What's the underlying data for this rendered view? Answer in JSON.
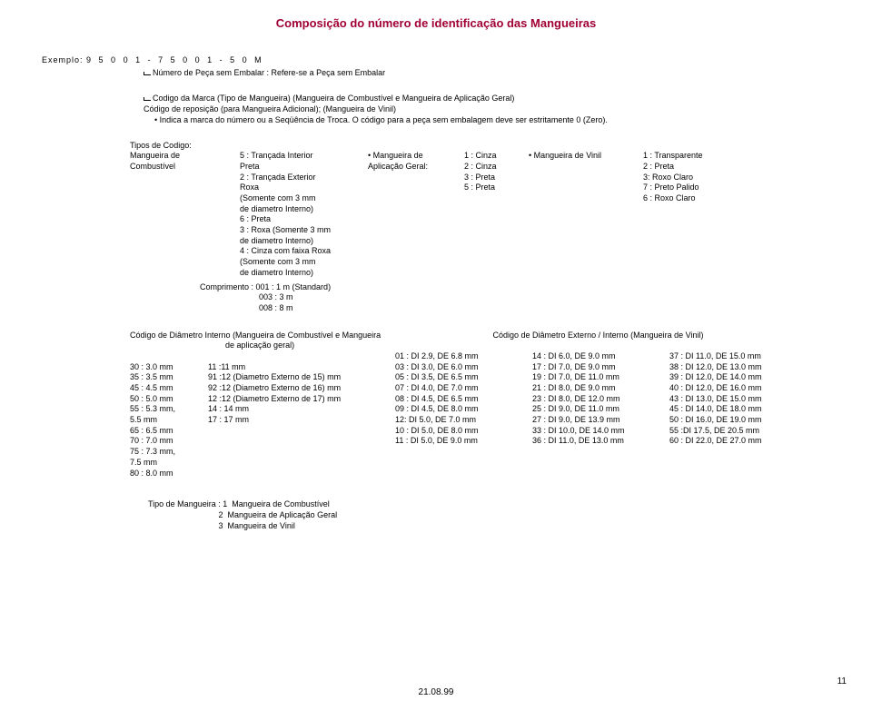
{
  "title": "Composição do número de identificação das Mangueiras",
  "example": {
    "label": "Exemplo:",
    "digits": "9 5 0 0 1 - 7 5 0 0 1 - 5 0 M"
  },
  "refs": {
    "l1": "Número de Peça sem Embalar : Refere-se a Peça sem Embalar",
    "l2": "Codigo da Marca (Tipo de Mangueira) (Mangueira de Combustível e Mangueira de Aplicação Geral)",
    "l2b": "Código de reposição (para Mangueira Adicional); (Mangueira de Vinil)",
    "l2c": "Indica a marca do número ou a Seqüência de Troca. O código para a peça sem embalagem deve ser estritamente 0 (Zero)."
  },
  "tipos_header": "Tipos de Codigo:",
  "tipos_sub": "Mangueira de\nCombustível",
  "col0": "",
  "col1": "5 : Trançada Interior\nPreta\n2 : Trançada Exterior\nRoxa\n(Somente com 3 mm\nde diametro Interno)\n6 : Preta\n3 : Roxa (Somente 3 mm\nde diametro Interno)\n4 : Cinza com faixa Roxa\n(Somente com 3 mm\nde diametro Interno)",
  "col2": "• Mangueira de\nAplicação Geral:",
  "col3": "1 : Cinza\n2 : Cinza\n3 : Preta\n5 : Preta",
  "col4": "• Mangueira de Vinil",
  "col5": "1 : Transparente\n2 : Preta\n3: Roxo Claro\n7 : Preto Palido\n6 : Roxo Claro",
  "comprimento": "Comprimento : 001 : 1 m (Standard)\n                          003 : 3 m\n                          008 : 8 m",
  "codigo_h1": "Código de Diâmetro Interno (Mangueira de Combustível e Mangueira\n                                          de aplicação geral)",
  "codigo_h2": "Código de Diâmetro Externo / Interno (Mangueira de Vinil)",
  "cc0": "\n30 : 3.0 mm\n35 : 3.5 mm\n45 : 4.5 mm\n50 : 5.0 mm\n55 : 5.3 mm,\n       5.5 mm\n65 : 6.5 mm\n70 : 7.0 mm\n75 : 7.3 mm,\n       7.5 mm\n80 : 8.0 mm",
  "cc1": "\n11 :11 mm\n91 :12 (Diametro Externo de 15) mm\n92 :12 (Diametro Externo de 16) mm\n12 :12 (Diametro Externo de 17) mm\n14 : 14 mm\n17 : 17 mm",
  "cc2": "01 : DI 2.9, DE 6.8 mm\n03 : DI 3.0, DE 6.0 mm\n05 : DI 3.5, DE 6.5 mm\n07 : DI 4.0, DE 7.0 mm\n08 : DI 4.5, DE 6.5 mm\n09 : DI 4.5, DE 8.0 mm\n12: DI 5.0, DE 7.0 mm\n10 : DI 5.0, DE 8.0 mm\n11 : DI 5.0, DE 9.0 mm",
  "cc3": "14 : DI 6.0, DE 9.0 mm\n17 : DI 7.0, DE 9.0 mm\n19 : DI 7.0, DE 11.0 mm\n21 : DI 8.0, DE 9.0 mm\n23 : DI 8.0, DE 12.0 mm\n25 : DI 9.0, DE 11.0 mm\n27 : DI 9.0, DE 13.9 mm\n33 : DI 10.0, DE 14.0 mm\n36 : DI 11.0, DE 13.0 mm",
  "cc4": "37 : DI 11.0, DE 15.0 mm\n38 : DI 12.0, DE 13.0 mm\n39 : DI 12.0, DE 14.0 mm\n40 : DI 12.0, DE 16.0 mm\n43 : DI 13.0, DE 15.0 mm\n45 : DI 14.0, DE 18.0 mm\n50 : DI 16.0, DE 19.0 mm\n55 :DI 17.5, DE 20.5 mm\n60 : DI 22.0, DE 27.0 mm",
  "tipo": "Tipo de Mangueira : 1  Mangueira de Combustível\n                               2  Mangueira de Aplicação Geral\n                               3  Mangueira de Vinil",
  "page": "11",
  "date": "21.08.99"
}
